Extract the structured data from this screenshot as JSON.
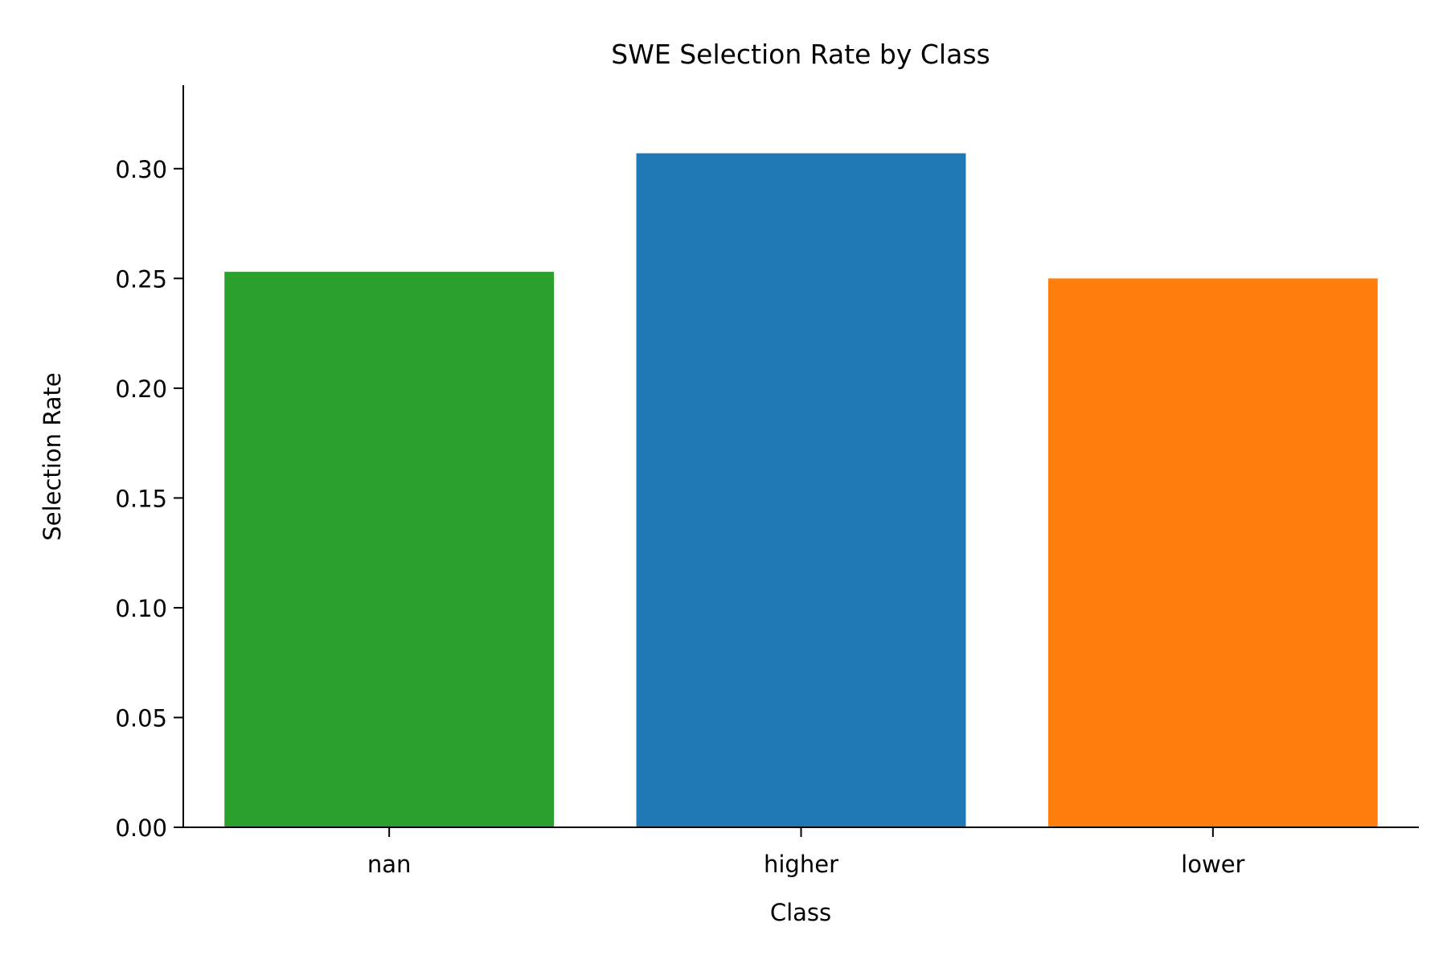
{
  "chart_data": {
    "type": "bar",
    "title": "SWE Selection Rate by Class",
    "xlabel": "Class",
    "ylabel": "Selection Rate",
    "categories": [
      "nan",
      "higher",
      "lower"
    ],
    "values": [
      0.253,
      0.307,
      0.25
    ],
    "colors": [
      "#2ca02c",
      "#1f77b4",
      "#ff7f0e"
    ],
    "ylim": [
      0,
      0.338
    ],
    "yticks": [
      "0.00",
      "0.05",
      "0.10",
      "0.15",
      "0.20",
      "0.25",
      "0.30"
    ],
    "grid": false,
    "legend": "none"
  }
}
